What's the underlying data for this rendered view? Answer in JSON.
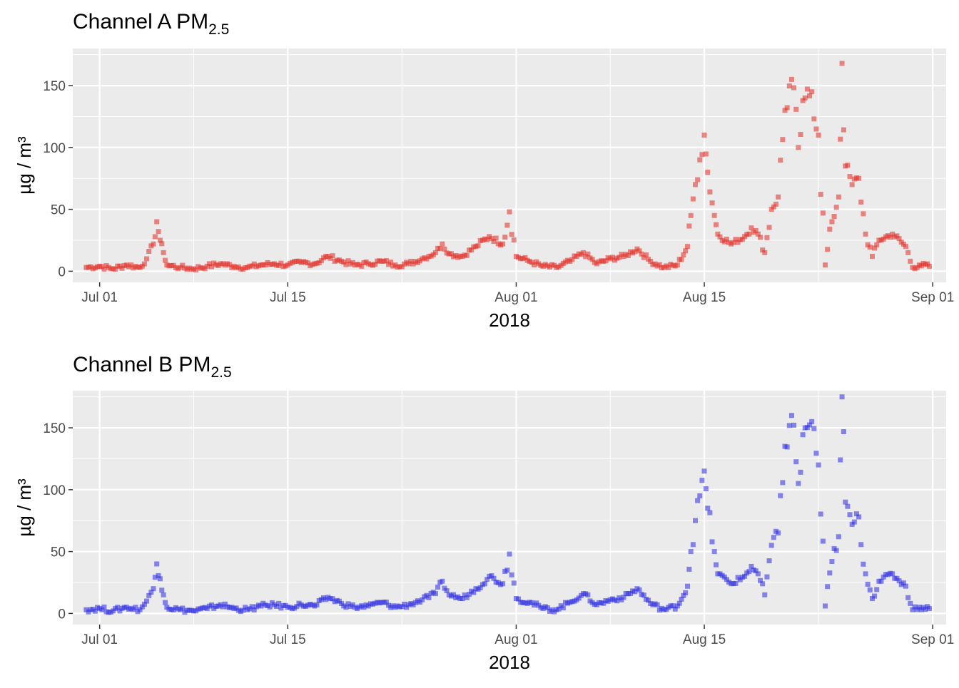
{
  "colors": {
    "panel_bg": "#ebebeb",
    "grid": "#ffffff",
    "series_a": "#e22a22",
    "series_b": "#2a2ae2"
  },
  "chart_data": [
    {
      "type": "scatter",
      "title": "Channel A PM",
      "title_sub": "2.5",
      "xlabel": "2018",
      "ylabel": "µg / m³",
      "xlim": [
        "2018-06-29",
        "2018-09-02"
      ],
      "ylim": [
        -9,
        180
      ],
      "x_ticks": [
        {
          "date": "2018-07-01",
          "label": "Jul 01"
        },
        {
          "date": "2018-07-15",
          "label": "Jul 15"
        },
        {
          "date": "2018-08-01",
          "label": "Aug 01"
        },
        {
          "date": "2018-08-15",
          "label": "Aug 15"
        },
        {
          "date": "2018-09-01",
          "label": "Sep 01"
        }
      ],
      "y_ticks": [
        0,
        50,
        100,
        150
      ],
      "color": "#e22a22",
      "series": [
        {
          "points": [
            [
              "2018-06-30",
              3
            ],
            [
              "2018-07-01",
              4
            ],
            [
              "2018-07-02",
              2
            ],
            [
              "2018-07-03",
              5
            ],
            [
              "2018-07-04",
              3
            ],
            [
              "2018-07-04T12",
              10
            ],
            [
              "2018-07-05",
              22
            ],
            [
              "2018-07-05T06",
              40
            ],
            [
              "2018-07-05T12",
              25
            ],
            [
              "2018-07-05T18",
              15
            ],
            [
              "2018-07-06",
              5
            ],
            [
              "2018-07-07",
              3
            ],
            [
              "2018-07-08",
              2
            ],
            [
              "2018-07-09",
              4
            ],
            [
              "2018-07-10",
              6
            ],
            [
              "2018-07-11",
              4
            ],
            [
              "2018-07-12",
              3
            ],
            [
              "2018-07-13",
              5
            ],
            [
              "2018-07-14",
              6
            ],
            [
              "2018-07-15",
              5
            ],
            [
              "2018-07-16",
              7
            ],
            [
              "2018-07-17",
              6
            ],
            [
              "2018-07-18",
              12
            ],
            [
              "2018-07-19",
              8
            ],
            [
              "2018-07-20",
              5
            ],
            [
              "2018-07-21",
              6
            ],
            [
              "2018-07-22",
              8
            ],
            [
              "2018-07-23",
              5
            ],
            [
              "2018-07-24",
              6
            ],
            [
              "2018-07-25",
              10
            ],
            [
              "2018-07-26",
              15
            ],
            [
              "2018-07-26T12",
              22
            ],
            [
              "2018-07-27",
              14
            ],
            [
              "2018-07-28",
              12
            ],
            [
              "2018-07-29",
              20
            ],
            [
              "2018-07-30",
              28
            ],
            [
              "2018-07-31",
              22
            ],
            [
              "2018-07-31T12",
              48
            ],
            [
              "2018-08-01",
              12
            ],
            [
              "2018-08-02",
              8
            ],
            [
              "2018-08-03",
              4
            ],
            [
              "2018-08-04",
              3
            ],
            [
              "2018-08-05",
              8
            ],
            [
              "2018-08-06",
              15
            ],
            [
              "2018-08-07",
              6
            ],
            [
              "2018-08-08",
              10
            ],
            [
              "2018-08-09",
              12
            ],
            [
              "2018-08-10",
              18
            ],
            [
              "2018-08-11",
              8
            ],
            [
              "2018-08-12",
              3
            ],
            [
              "2018-08-13",
              5
            ],
            [
              "2018-08-13T18",
              20
            ],
            [
              "2018-08-14",
              45
            ],
            [
              "2018-08-14T08",
              70
            ],
            [
              "2018-08-14T16",
              90
            ],
            [
              "2018-08-15",
              110
            ],
            [
              "2018-08-15T06",
              80
            ],
            [
              "2018-08-15T18",
              45
            ],
            [
              "2018-08-16",
              30
            ],
            [
              "2018-08-17",
              22
            ],
            [
              "2018-08-18",
              28
            ],
            [
              "2018-08-18T12",
              35
            ],
            [
              "2018-08-19",
              30
            ],
            [
              "2018-08-19T12",
              15
            ],
            [
              "2018-08-20",
              50
            ],
            [
              "2018-08-20T12",
              60
            ],
            [
              "2018-08-21",
              130
            ],
            [
              "2018-08-21T12",
              155
            ],
            [
              "2018-08-22",
              100
            ],
            [
              "2018-08-22T12",
              140
            ],
            [
              "2018-08-23",
              145
            ],
            [
              "2018-08-23T12",
              110
            ],
            [
              "2018-08-24",
              5
            ],
            [
              "2018-08-24T12",
              40
            ],
            [
              "2018-08-25",
              60
            ],
            [
              "2018-08-25T06",
              168
            ],
            [
              "2018-08-25T12",
              85
            ],
            [
              "2018-08-26",
              70
            ],
            [
              "2018-08-26T12",
              75
            ],
            [
              "2018-08-27",
              30
            ],
            [
              "2018-08-27T12",
              12
            ],
            [
              "2018-08-28",
              25
            ],
            [
              "2018-08-29",
              30
            ],
            [
              "2018-08-30",
              20
            ],
            [
              "2018-08-30T12",
              3
            ],
            [
              "2018-08-31",
              5
            ],
            [
              "2018-08-31T18",
              4
            ]
          ]
        }
      ]
    },
    {
      "type": "scatter",
      "title": "Channel B PM",
      "title_sub": "2.5",
      "xlabel": "2018",
      "ylabel": "µg / m³",
      "xlim": [
        "2018-06-29",
        "2018-09-02"
      ],
      "ylim": [
        -9,
        180
      ],
      "x_ticks": [
        {
          "date": "2018-07-01",
          "label": "Jul 01"
        },
        {
          "date": "2018-07-15",
          "label": "Jul 15"
        },
        {
          "date": "2018-08-01",
          "label": "Aug 01"
        },
        {
          "date": "2018-08-15",
          "label": "Aug 15"
        },
        {
          "date": "2018-09-01",
          "label": "Sep 01"
        }
      ],
      "y_ticks": [
        0,
        50,
        100,
        150
      ],
      "color": "#2a2ae2",
      "series": [
        {
          "points": [
            [
              "2018-06-30",
              3
            ],
            [
              "2018-07-01",
              4
            ],
            [
              "2018-07-02",
              2
            ],
            [
              "2018-07-03",
              5
            ],
            [
              "2018-07-04",
              3
            ],
            [
              "2018-07-04T12",
              10
            ],
            [
              "2018-07-05",
              20
            ],
            [
              "2018-07-05T06",
              40
            ],
            [
              "2018-07-05T12",
              28
            ],
            [
              "2018-07-05T18",
              15
            ],
            [
              "2018-07-06",
              5
            ],
            [
              "2018-07-07",
              3
            ],
            [
              "2018-07-08",
              2
            ],
            [
              "2018-07-09",
              4
            ],
            [
              "2018-07-10",
              7
            ],
            [
              "2018-07-11",
              4
            ],
            [
              "2018-07-12",
              3
            ],
            [
              "2018-07-13",
              6
            ],
            [
              "2018-07-14",
              7
            ],
            [
              "2018-07-15",
              5
            ],
            [
              "2018-07-16",
              7
            ],
            [
              "2018-07-17",
              6
            ],
            [
              "2018-07-18",
              13
            ],
            [
              "2018-07-19",
              8
            ],
            [
              "2018-07-20",
              5
            ],
            [
              "2018-07-21",
              6
            ],
            [
              "2018-07-22",
              9
            ],
            [
              "2018-07-23",
              5
            ],
            [
              "2018-07-24",
              7
            ],
            [
              "2018-07-25",
              11
            ],
            [
              "2018-07-26",
              16
            ],
            [
              "2018-07-26T12",
              26
            ],
            [
              "2018-07-27",
              15
            ],
            [
              "2018-07-28",
              12
            ],
            [
              "2018-07-29",
              20
            ],
            [
              "2018-07-30",
              30
            ],
            [
              "2018-07-31",
              24
            ],
            [
              "2018-07-31T12",
              48
            ],
            [
              "2018-08-01",
              12
            ],
            [
              "2018-08-02",
              9
            ],
            [
              "2018-08-03",
              4
            ],
            [
              "2018-08-04",
              3
            ],
            [
              "2018-08-05",
              9
            ],
            [
              "2018-08-06",
              16
            ],
            [
              "2018-08-07",
              7
            ],
            [
              "2018-08-08",
              11
            ],
            [
              "2018-08-09",
              13
            ],
            [
              "2018-08-10",
              20
            ],
            [
              "2018-08-11",
              8
            ],
            [
              "2018-08-12",
              3
            ],
            [
              "2018-08-13",
              6
            ],
            [
              "2018-08-13T18",
              22
            ],
            [
              "2018-08-14",
              50
            ],
            [
              "2018-08-14T08",
              75
            ],
            [
              "2018-08-14T16",
              95
            ],
            [
              "2018-08-15",
              115
            ],
            [
              "2018-08-15T06",
              85
            ],
            [
              "2018-08-15T18",
              50
            ],
            [
              "2018-08-16",
              32
            ],
            [
              "2018-08-17",
              24
            ],
            [
              "2018-08-18",
              30
            ],
            [
              "2018-08-18T12",
              38
            ],
            [
              "2018-08-19",
              32
            ],
            [
              "2018-08-19T12",
              15
            ],
            [
              "2018-08-20",
              55
            ],
            [
              "2018-08-20T12",
              65
            ],
            [
              "2018-08-21",
              135
            ],
            [
              "2018-08-21T12",
              160
            ],
            [
              "2018-08-22",
              105
            ],
            [
              "2018-08-22T12",
              150
            ],
            [
              "2018-08-23",
              155
            ],
            [
              "2018-08-23T12",
              120
            ],
            [
              "2018-08-24",
              6
            ],
            [
              "2018-08-24T12",
              42
            ],
            [
              "2018-08-25",
              62
            ],
            [
              "2018-08-25T06",
              175
            ],
            [
              "2018-08-25T12",
              90
            ],
            [
              "2018-08-26",
              72
            ],
            [
              "2018-08-26T12",
              78
            ],
            [
              "2018-08-27",
              32
            ],
            [
              "2018-08-27T12",
              12
            ],
            [
              "2018-08-28",
              26
            ],
            [
              "2018-08-29",
              32
            ],
            [
              "2018-08-30",
              22
            ],
            [
              "2018-08-30T12",
              3
            ],
            [
              "2018-08-31",
              5
            ],
            [
              "2018-08-31T18",
              4
            ]
          ]
        }
      ]
    }
  ]
}
